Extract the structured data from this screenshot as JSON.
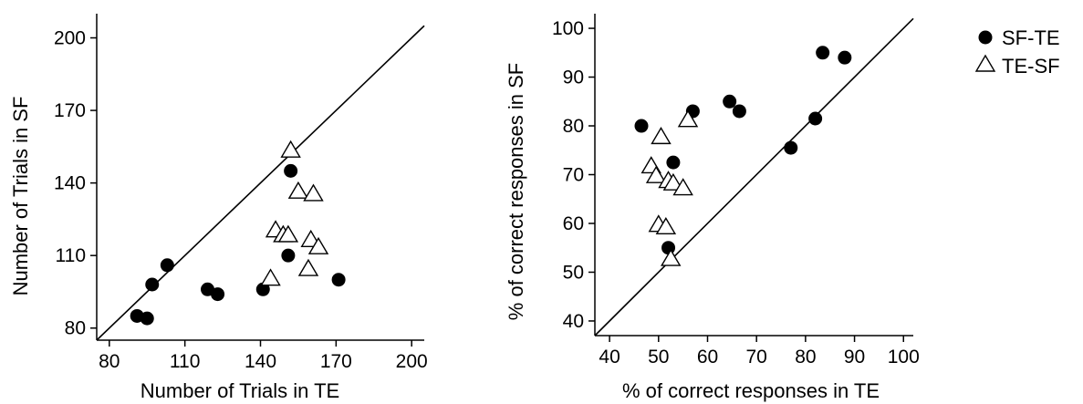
{
  "chart_data": [
    {
      "type": "scatter",
      "xlabel": "Number of Trials in TE",
      "ylabel": "Number of Trials in SF",
      "xlim": [
        75,
        205
      ],
      "ylim": [
        75,
        210
      ],
      "xticks": [
        "80",
        "110",
        "140",
        "170",
        "200"
      ],
      "yticks": [
        "80",
        "110",
        "140",
        "170",
        "200"
      ],
      "reference_line": "y = x",
      "series": [
        {
          "name": "SF-TE",
          "marker": "filled-circle",
          "points": [
            [
              91,
              85
            ],
            [
              95,
              84
            ],
            [
              97,
              98
            ],
            [
              103,
              106
            ],
            [
              119,
              96
            ],
            [
              123,
              94
            ],
            [
              141,
              96
            ],
            [
              151,
              110
            ],
            [
              152,
              145
            ],
            [
              171,
              100
            ]
          ]
        },
        {
          "name": "TE-SF",
          "marker": "open-triangle",
          "points": [
            [
              144,
              100
            ],
            [
              146,
              120
            ],
            [
              149,
              118
            ],
            [
              151,
              118
            ],
            [
              152,
              153
            ],
            [
              155,
              136
            ],
            [
              159,
              104
            ],
            [
              160,
              116
            ],
            [
              161,
              135
            ],
            [
              163,
              113
            ]
          ]
        }
      ]
    },
    {
      "type": "scatter",
      "xlabel": "% of correct responses in TE",
      "ylabel": "% of correct responses in SF",
      "xlim": [
        37,
        102
      ],
      "ylim": [
        37,
        103
      ],
      "xticks": [
        "40",
        "50",
        "60",
        "70",
        "80",
        "90",
        "100"
      ],
      "yticks": [
        "40",
        "50",
        "60",
        "70",
        "80",
        "90",
        "100"
      ],
      "reference_line": "y = x",
      "series": [
        {
          "name": "SF-TE",
          "marker": "filled-circle",
          "points": [
            [
              46.5,
              80
            ],
            [
              52,
              55
            ],
            [
              53,
              72.5
            ],
            [
              57,
              83
            ],
            [
              64.5,
              85
            ],
            [
              66.5,
              83
            ],
            [
              77,
              75.5
            ],
            [
              82,
              81.5
            ],
            [
              83.5,
              95
            ],
            [
              88,
              94
            ]
          ]
        },
        {
          "name": "TE-SF",
          "marker": "open-triangle",
          "points": [
            [
              48.5,
              71.5
            ],
            [
              49.5,
              69.5
            ],
            [
              50,
              59.5
            ],
            [
              50.5,
              77.5
            ],
            [
              51.5,
              59
            ],
            [
              52,
              68.5
            ],
            [
              52.5,
              52.5
            ],
            [
              53,
              68
            ],
            [
              55,
              67
            ],
            [
              56,
              81
            ]
          ]
        }
      ]
    }
  ],
  "legend": {
    "position": "top-right",
    "items": [
      {
        "label": "SF-TE",
        "marker": "filled-circle"
      },
      {
        "label": "TE-SF",
        "marker": "open-triangle"
      }
    ]
  }
}
